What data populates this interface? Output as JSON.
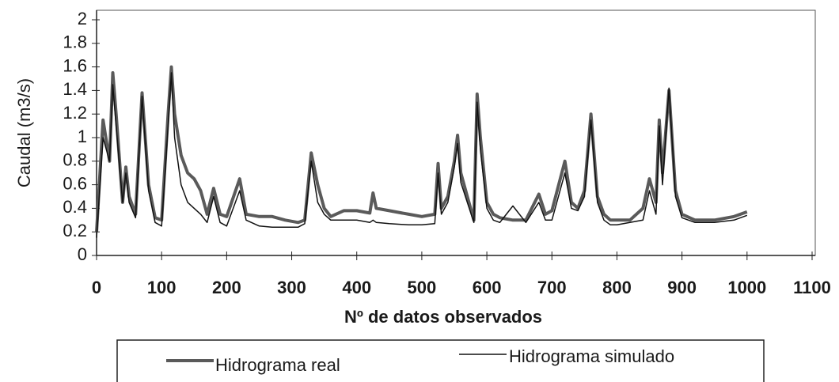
{
  "chart_data": {
    "type": "line",
    "x_label": "Nº de datos observados",
    "y_label": "Caudal (m3/s)",
    "x": [
      0,
      10,
      20,
      25,
      30,
      40,
      45,
      50,
      60,
      70,
      80,
      90,
      100,
      110,
      115,
      120,
      130,
      140,
      150,
      160,
      170,
      180,
      190,
      200,
      220,
      230,
      250,
      270,
      290,
      310,
      320,
      330,
      340,
      350,
      360,
      380,
      400,
      420,
      425,
      430,
      450,
      480,
      500,
      520,
      525,
      530,
      540,
      550,
      555,
      560,
      570,
      580,
      585,
      590,
      600,
      610,
      620,
      640,
      660,
      680,
      690,
      700,
      720,
      730,
      740,
      750,
      760,
      770,
      780,
      790,
      800,
      820,
      840,
      850,
      860,
      865,
      870,
      880,
      890,
      900,
      920,
      950,
      980,
      1000
    ],
    "series": [
      {
        "name": "Hidrograma real",
        "color": "#5a5a5a",
        "values": [
          0.2,
          1.15,
          0.8,
          1.55,
          1.2,
          0.45,
          0.75,
          0.5,
          0.35,
          1.38,
          0.6,
          0.32,
          0.3,
          1.2,
          1.6,
          1.2,
          0.85,
          0.7,
          0.65,
          0.55,
          0.35,
          0.57,
          0.35,
          0.33,
          0.65,
          0.35,
          0.33,
          0.33,
          0.3,
          0.28,
          0.3,
          0.87,
          0.6,
          0.4,
          0.33,
          0.38,
          0.38,
          0.36,
          0.53,
          0.4,
          0.38,
          0.35,
          0.33,
          0.35,
          0.78,
          0.4,
          0.5,
          0.8,
          1.02,
          0.7,
          0.5,
          0.3,
          1.37,
          1.0,
          0.45,
          0.35,
          0.32,
          0.3,
          0.3,
          0.52,
          0.35,
          0.38,
          0.8,
          0.45,
          0.4,
          0.55,
          1.2,
          0.5,
          0.35,
          0.3,
          0.3,
          0.3,
          0.4,
          0.65,
          0.45,
          1.15,
          0.7,
          1.4,
          0.55,
          0.35,
          0.3,
          0.3,
          0.33,
          0.37
        ]
      },
      {
        "name": "Hidrograma simulado",
        "color": "#111111",
        "values": [
          0.15,
          1.0,
          0.8,
          1.45,
          1.1,
          0.45,
          0.7,
          0.45,
          0.32,
          1.35,
          0.55,
          0.28,
          0.25,
          1.1,
          1.55,
          1.0,
          0.6,
          0.45,
          0.4,
          0.35,
          0.28,
          0.5,
          0.28,
          0.25,
          0.55,
          0.3,
          0.25,
          0.24,
          0.24,
          0.24,
          0.27,
          0.8,
          0.45,
          0.35,
          0.3,
          0.3,
          0.3,
          0.28,
          0.3,
          0.28,
          0.27,
          0.26,
          0.26,
          0.27,
          0.7,
          0.35,
          0.45,
          0.75,
          0.95,
          0.62,
          0.45,
          0.28,
          1.3,
          0.9,
          0.4,
          0.3,
          0.28,
          0.42,
          0.28,
          0.45,
          0.3,
          0.3,
          0.7,
          0.4,
          0.38,
          0.5,
          1.15,
          0.45,
          0.3,
          0.26,
          0.26,
          0.28,
          0.3,
          0.55,
          0.35,
          1.1,
          0.6,
          1.42,
          0.5,
          0.32,
          0.28,
          0.28,
          0.3,
          0.34
        ]
      }
    ],
    "xlim": [
      0,
      1100
    ],
    "xticks": [
      0,
      100,
      200,
      300,
      400,
      500,
      600,
      700,
      800,
      900,
      1000,
      1100
    ],
    "ylim": [
      0,
      2
    ],
    "yticks": [
      0,
      0.2,
      0.4,
      0.6,
      0.8,
      1,
      1.2,
      1.4,
      1.6,
      1.8,
      2
    ],
    "grid": false
  }
}
